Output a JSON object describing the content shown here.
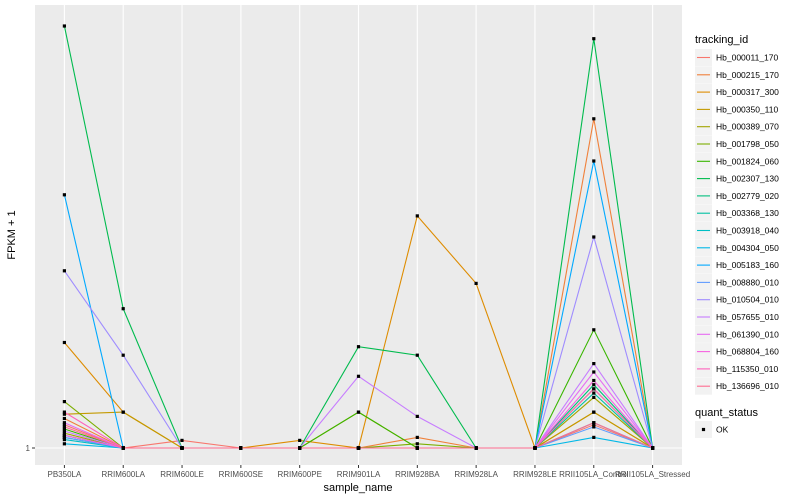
{
  "chart_data": {
    "type": "line",
    "xlabel": "sample_name",
    "ylabel": "FPKM + 1",
    "y_ticks": [
      "1"
    ],
    "scale_max": 100,
    "categories": [
      "PB350LA",
      "RRIM600LA",
      "RRIM600LE",
      "RRIM600SE",
      "RRIM600PE",
      "RRIM901LA",
      "RRIM928BA",
      "RRIM928LA",
      "RRIM928LE",
      "RRII105LA_Control",
      "RRII105LA_Stressed"
    ],
    "legend_title": "tracking_id",
    "series": [
      {
        "name": "Hb_000011_170",
        "color": "#F8766D",
        "values": [
          5.5,
          0,
          1.8,
          0,
          0,
          0,
          0,
          0,
          0,
          5.5,
          0
        ]
      },
      {
        "name": "Hb_000215_170",
        "color": "#F0803A",
        "values": [
          7,
          0,
          0,
          0,
          0,
          0,
          2.5,
          0,
          0,
          78,
          0
        ]
      },
      {
        "name": "Hb_000317_300",
        "color": "#DE8C00",
        "values": [
          25,
          8.5,
          0,
          0,
          1.8,
          0,
          55,
          39,
          0,
          8.5,
          0
        ]
      },
      {
        "name": "Hb_000350_110",
        "color": "#C49A00",
        "values": [
          8,
          8.5,
          0,
          0,
          0,
          8.5,
          0,
          0,
          0,
          8.5,
          0
        ]
      },
      {
        "name": "Hb_000389_070",
        "color": "#A3A500",
        "values": [
          3.5,
          0,
          0,
          0,
          0,
          0,
          0,
          0,
          0,
          12,
          0
        ]
      },
      {
        "name": "Hb_001798_050",
        "color": "#7CAE00",
        "values": [
          11,
          0,
          0,
          0,
          0,
          0,
          1,
          0,
          0,
          14,
          0
        ]
      },
      {
        "name": "Hb_001824_060",
        "color": "#39B600",
        "values": [
          4.5,
          0,
          0,
          0,
          0,
          8.5,
          0,
          0,
          0,
          28,
          0
        ]
      },
      {
        "name": "Hb_002307_130",
        "color": "#00BB4E",
        "values": [
          100,
          33,
          0,
          0,
          0,
          24,
          22,
          0,
          0,
          97,
          0
        ]
      },
      {
        "name": "Hb_002779_020",
        "color": "#00BF7D",
        "values": [
          3,
          0,
          0,
          0,
          0,
          0,
          0,
          0,
          0,
          15,
          0
        ]
      },
      {
        "name": "Hb_003368_130",
        "color": "#00C1A3",
        "values": [
          2.5,
          0,
          0,
          0,
          0,
          0,
          0,
          0,
          0,
          13,
          0
        ]
      },
      {
        "name": "Hb_003918_040",
        "color": "#00BFC4",
        "values": [
          2,
          0,
          0,
          0,
          0,
          0,
          0,
          0,
          0,
          6,
          0
        ]
      },
      {
        "name": "Hb_004304_050",
        "color": "#00B8E7",
        "values": [
          1,
          0,
          0,
          0,
          0,
          0,
          0,
          0,
          0,
          2.5,
          0
        ]
      },
      {
        "name": "Hb_005183_160",
        "color": "#00A9FF",
        "values": [
          60,
          0,
          0,
          0,
          0,
          0,
          0,
          0,
          0,
          68,
          0
        ]
      },
      {
        "name": "Hb_008880_010",
        "color": "#619CFF",
        "values": [
          2.5,
          0,
          0,
          0,
          0,
          0,
          0,
          0,
          0,
          5,
          0
        ]
      },
      {
        "name": "Hb_010504_010",
        "color": "#9F8CFF",
        "values": [
          42,
          22,
          0,
          0,
          0,
          0,
          0,
          0,
          0,
          50,
          0
        ]
      },
      {
        "name": "Hb_057655_010",
        "color": "#C77CFF",
        "values": [
          4,
          0,
          0,
          0,
          0,
          17,
          7.5,
          0,
          0,
          20,
          0
        ]
      },
      {
        "name": "Hb_061390_010",
        "color": "#E76BF3",
        "values": [
          6,
          0,
          0,
          0,
          0,
          0,
          0,
          0,
          0,
          18,
          0
        ]
      },
      {
        "name": "Hb_068804_160",
        "color": "#F763E0",
        "values": [
          3,
          0,
          0,
          0,
          0,
          0,
          0,
          0,
          0,
          16,
          0
        ]
      },
      {
        "name": "Hb_115350_010",
        "color": "#FF62BC",
        "values": [
          8.5,
          0,
          0,
          0,
          0,
          0,
          0,
          0,
          0,
          14,
          0
        ]
      },
      {
        "name": "Hb_136696_010",
        "color": "#FF6C91",
        "values": [
          5,
          0,
          0,
          0,
          0,
          0,
          0,
          0,
          0,
          6,
          0
        ]
      }
    ],
    "shape_legend_title": "quant_status",
    "shape_legend_items": [
      "OK"
    ],
    "grid": true,
    "legend_position": "right"
  }
}
